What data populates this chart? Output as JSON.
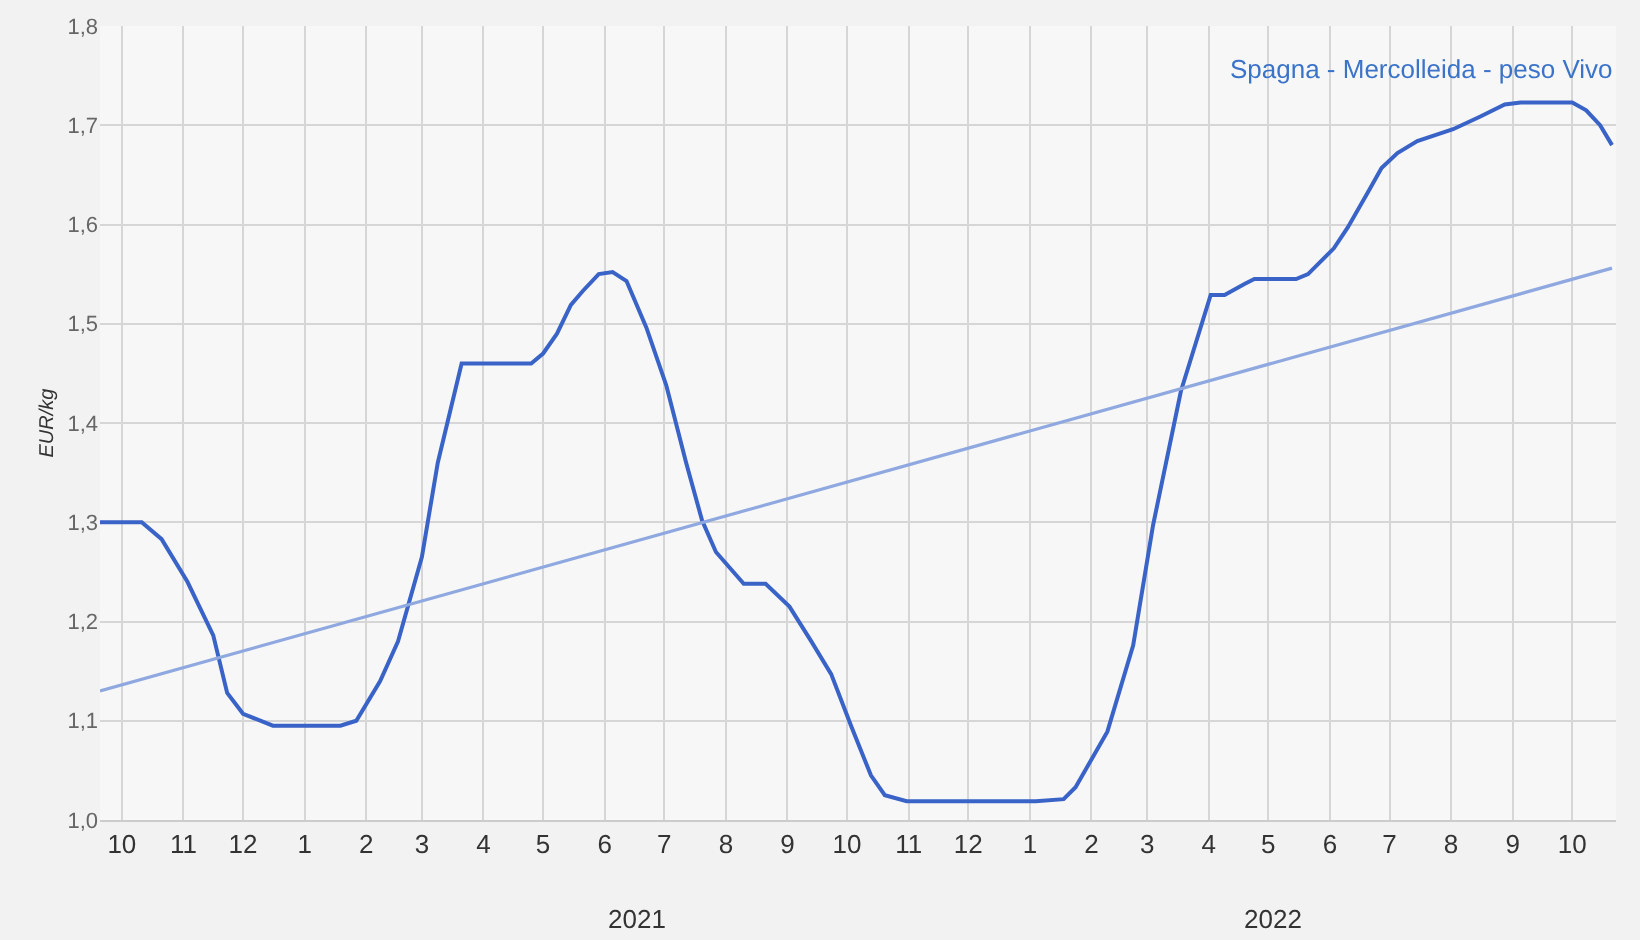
{
  "chart_data": {
    "type": "line",
    "title": "Spagna - Mercolleida - peso Vivo",
    "ylabel": "EUR/kg",
    "xlim": [
      "2020-09-20",
      "2022-10-23"
    ],
    "xticks": [
      {
        "value": "2020-10-01",
        "label": "10"
      },
      {
        "value": "2020-11-01",
        "label": "11"
      },
      {
        "value": "2020-12-01",
        "label": "12"
      },
      {
        "value": "2021-01-01",
        "label": "1"
      },
      {
        "value": "2021-02-01",
        "label": "2"
      },
      {
        "value": "2021-03-01",
        "label": "3"
      },
      {
        "value": "2021-04-01",
        "label": "4"
      },
      {
        "value": "2021-05-01",
        "label": "5"
      },
      {
        "value": "2021-06-01",
        "label": "6"
      },
      {
        "value": "2021-07-01",
        "label": "7"
      },
      {
        "value": "2021-08-01",
        "label": "8"
      },
      {
        "value": "2021-09-01",
        "label": "9"
      },
      {
        "value": "2021-10-01",
        "label": "10"
      },
      {
        "value": "2021-11-01",
        "label": "11"
      },
      {
        "value": "2021-12-01",
        "label": "12"
      },
      {
        "value": "2022-01-01",
        "label": "1"
      },
      {
        "value": "2022-02-01",
        "label": "2"
      },
      {
        "value": "2022-03-01",
        "label": "3"
      },
      {
        "value": "2022-04-01",
        "label": "4"
      },
      {
        "value": "2022-05-01",
        "label": "5"
      },
      {
        "value": "2022-06-01",
        "label": "6"
      },
      {
        "value": "2022-07-01",
        "label": "7"
      },
      {
        "value": "2022-08-01",
        "label": "8"
      },
      {
        "value": "2022-09-01",
        "label": "9"
      },
      {
        "value": "2022-10-01",
        "label": "10"
      }
    ],
    "ylim": [
      1.0,
      1.8
    ],
    "yticks": [
      {
        "value": 1.0,
        "label": "1,0"
      },
      {
        "value": 1.1,
        "label": "1,1"
      },
      {
        "value": 1.2,
        "label": "1,2"
      },
      {
        "value": 1.3,
        "label": "1,3"
      },
      {
        "value": 1.4,
        "label": "1,4"
      },
      {
        "value": 1.5,
        "label": "1,5"
      },
      {
        "value": 1.6,
        "label": "1,6"
      },
      {
        "value": 1.7,
        "label": "1,7"
      },
      {
        "value": 1.8,
        "label": "1,8"
      }
    ],
    "grid": true,
    "marker": "none",
    "line_style": "solid",
    "annotations": [
      "2021",
      "2022"
    ],
    "series": [
      {
        "color": "#3a63c8",
        "x": [
          "2020-09-20",
          "2020-10-11",
          "2020-10-21",
          "2020-11-03",
          "2020-11-16",
          "2020-11-23",
          "2020-12-01",
          "2020-12-16",
          "2021-01-19",
          "2021-01-27",
          "2021-02-08",
          "2021-02-17",
          "2021-03-01",
          "2021-03-09",
          "2021-03-21",
          "2021-04-25",
          "2021-05-01",
          "2021-05-08",
          "2021-05-15",
          "2021-05-21",
          "2021-05-29",
          "2021-06-05",
          "2021-06-12",
          "2021-06-22",
          "2021-07-02",
          "2021-07-12",
          "2021-07-20",
          "2021-07-27",
          "2021-08-10",
          "2021-08-21",
          "2021-09-02",
          "2021-09-13",
          "2021-09-23",
          "2021-10-03",
          "2021-10-13",
          "2021-10-20",
          "2021-10-31",
          "2022-01-04",
          "2022-01-18",
          "2022-01-24",
          "2022-02-09",
          "2022-02-22",
          "2022-03-04",
          "2022-03-18",
          "2022-04-02",
          "2022-04-09",
          "2022-04-19",
          "2022-04-24",
          "2022-05-15",
          "2022-05-21",
          "2022-06-03",
          "2022-06-10",
          "2022-06-20",
          "2022-06-27",
          "2022-07-05",
          "2022-07-15",
          "2022-07-27",
          "2022-08-02",
          "2022-08-16",
          "2022-08-28",
          "2022-09-05",
          "2022-10-01",
          "2022-10-08",
          "2022-10-15",
          "2022-10-21"
        ],
        "values": [
          1.3,
          1.3,
          1.283,
          1.24,
          1.186,
          1.128,
          1.107,
          1.095,
          1.095,
          1.1,
          1.14,
          1.18,
          1.265,
          1.36,
          1.46,
          1.46,
          1.47,
          1.49,
          1.519,
          1.533,
          1.55,
          1.552,
          1.543,
          1.496,
          1.438,
          1.36,
          1.302,
          1.27,
          1.238,
          1.238,
          1.215,
          1.18,
          1.147,
          1.095,
          1.045,
          1.025,
          1.019,
          1.019,
          1.021,
          1.033,
          1.089,
          1.176,
          1.297,
          1.432,
          1.529,
          1.529,
          1.54,
          1.545,
          1.545,
          1.55,
          1.576,
          1.597,
          1.632,
          1.657,
          1.672,
          1.684,
          1.692,
          1.696,
          1.709,
          1.721,
          1.723,
          1.723,
          1.715,
          1.7,
          1.68
        ]
      },
      {
        "color": "#8fa9e0",
        "x": [
          "2020-09-20",
          "2022-10-21"
        ],
        "values": [
          1.13,
          1.556
        ]
      }
    ]
  }
}
